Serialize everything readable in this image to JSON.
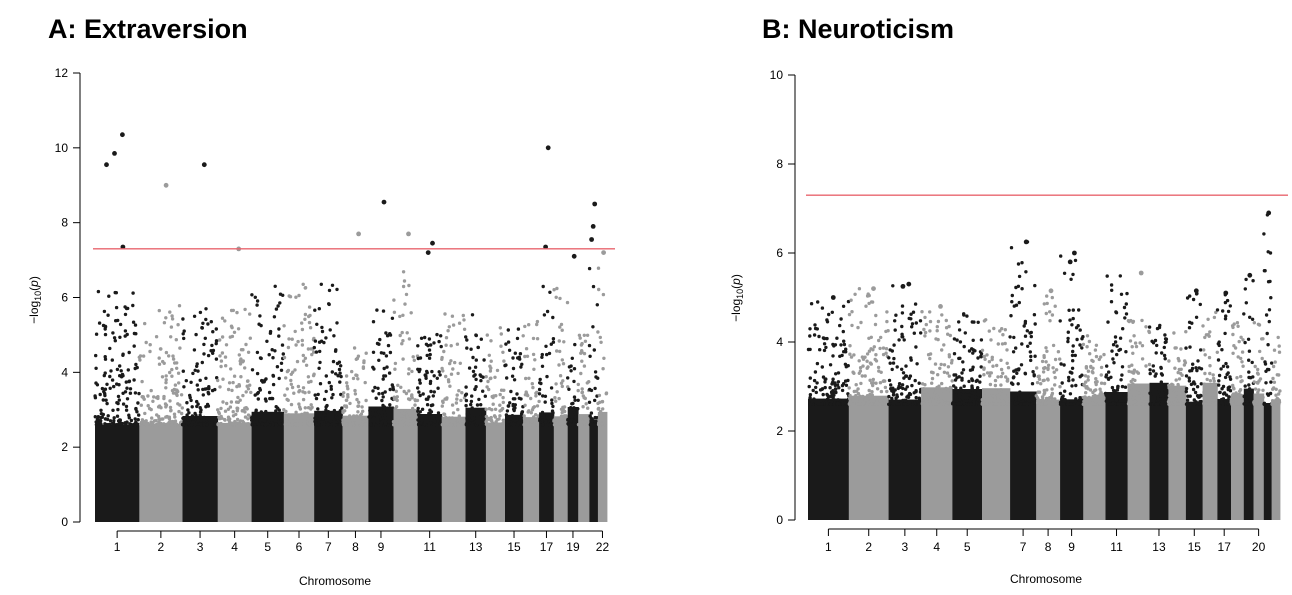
{
  "chart_data": [
    {
      "type": "scatter",
      "subtype": "manhattan",
      "title": "A: Extraversion",
      "xlabel": "Chromosome",
      "ylabel": "-log10(p)",
      "ylim": [
        0,
        12
      ],
      "yticks": [
        0,
        2,
        4,
        6,
        8,
        10,
        12
      ],
      "threshold": 7.3,
      "threshold_color": "#e8646e",
      "colors": [
        "#1a1a1a",
        "#9b9b9b"
      ],
      "chromosomes": [
        1,
        2,
        3,
        4,
        5,
        6,
        7,
        8,
        9,
        10,
        11,
        12,
        13,
        14,
        15,
        16,
        17,
        18,
        19,
        20,
        21,
        22
      ],
      "chromosome_tick_labels": [
        "1",
        "2",
        "3",
        "4",
        "5",
        "6",
        "7",
        "8",
        "9",
        "11",
        "13",
        "15",
        "17",
        "19",
        "22"
      ],
      "column_peaks": [
        6.2,
        5.8,
        5.9,
        5.8,
        6.3,
        6.5,
        6.5,
        4.7,
        5.7,
        6.8,
        5.2,
        5.6,
        5.6,
        5.2,
        5.3,
        5.4,
        6.6,
        6.7,
        4.8,
        5.0,
        6.8,
        6.8
      ],
      "top_hits": [
        {
          "chr": 1,
          "p": 10.35
        },
        {
          "chr": 1,
          "p": 9.85
        },
        {
          "chr": 1,
          "p": 9.55
        },
        {
          "chr": 1,
          "p": 7.35
        },
        {
          "chr": 2,
          "p": 9.0
        },
        {
          "chr": 3,
          "p": 9.55
        },
        {
          "chr": 4,
          "p": 7.3
        },
        {
          "chr": 8,
          "p": 7.7
        },
        {
          "chr": 9,
          "p": 8.55
        },
        {
          "chr": 10,
          "p": 7.7
        },
        {
          "chr": 11,
          "p": 7.45
        },
        {
          "chr": 11,
          "p": 7.2
        },
        {
          "chr": 17,
          "p": 10.0
        },
        {
          "chr": 17,
          "p": 7.35
        },
        {
          "chr": 19,
          "p": 7.1
        },
        {
          "chr": 21,
          "p": 8.5
        },
        {
          "chr": 21,
          "p": 7.9
        },
        {
          "chr": 21,
          "p": 7.55
        },
        {
          "chr": 22,
          "p": 7.2
        }
      ]
    },
    {
      "type": "scatter",
      "subtype": "manhattan",
      "title": "B: Neuroticism",
      "xlabel": "Chromosome",
      "ylabel": "-log10(p)",
      "ylim": [
        0,
        10
      ],
      "yticks": [
        0,
        2,
        4,
        6,
        8,
        10
      ],
      "threshold": 7.3,
      "threshold_color": "#e8646e",
      "colors": [
        "#1a1a1a",
        "#9b9b9b"
      ],
      "chromosomes": [
        1,
        2,
        3,
        4,
        5,
        6,
        7,
        8,
        9,
        10,
        11,
        12,
        13,
        14,
        15,
        16,
        17,
        18,
        19,
        20,
        21,
        22
      ],
      "chromosome_tick_labels": [
        "1",
        "2",
        "3",
        "4",
        "5",
        "7",
        "8",
        "9",
        "11",
        "13",
        "15",
        "17",
        "20"
      ],
      "column_peaks": [
        5.0,
        5.2,
        5.3,
        4.8,
        4.7,
        4.5,
        6.25,
        5.1,
        6.0,
        4.4,
        5.55,
        4.5,
        4.6,
        4.3,
        5.15,
        4.7,
        5.1,
        4.5,
        5.5,
        4.8,
        6.9,
        5.0
      ],
      "top_hits": [
        {
          "chr": 1,
          "p": 5.0
        },
        {
          "chr": 2,
          "p": 5.2
        },
        {
          "chr": 3,
          "p": 5.3
        },
        {
          "chr": 3,
          "p": 5.25
        },
        {
          "chr": 4,
          "p": 4.8
        },
        {
          "chr": 7,
          "p": 6.25
        },
        {
          "chr": 8,
          "p": 5.15
        },
        {
          "chr": 9,
          "p": 6.0
        },
        {
          "chr": 9,
          "p": 5.8
        },
        {
          "chr": 12,
          "p": 5.55
        },
        {
          "chr": 15,
          "p": 5.15
        },
        {
          "chr": 17,
          "p": 5.1
        },
        {
          "chr": 19,
          "p": 5.5
        },
        {
          "chr": 21,
          "p": 6.9
        }
      ]
    }
  ]
}
